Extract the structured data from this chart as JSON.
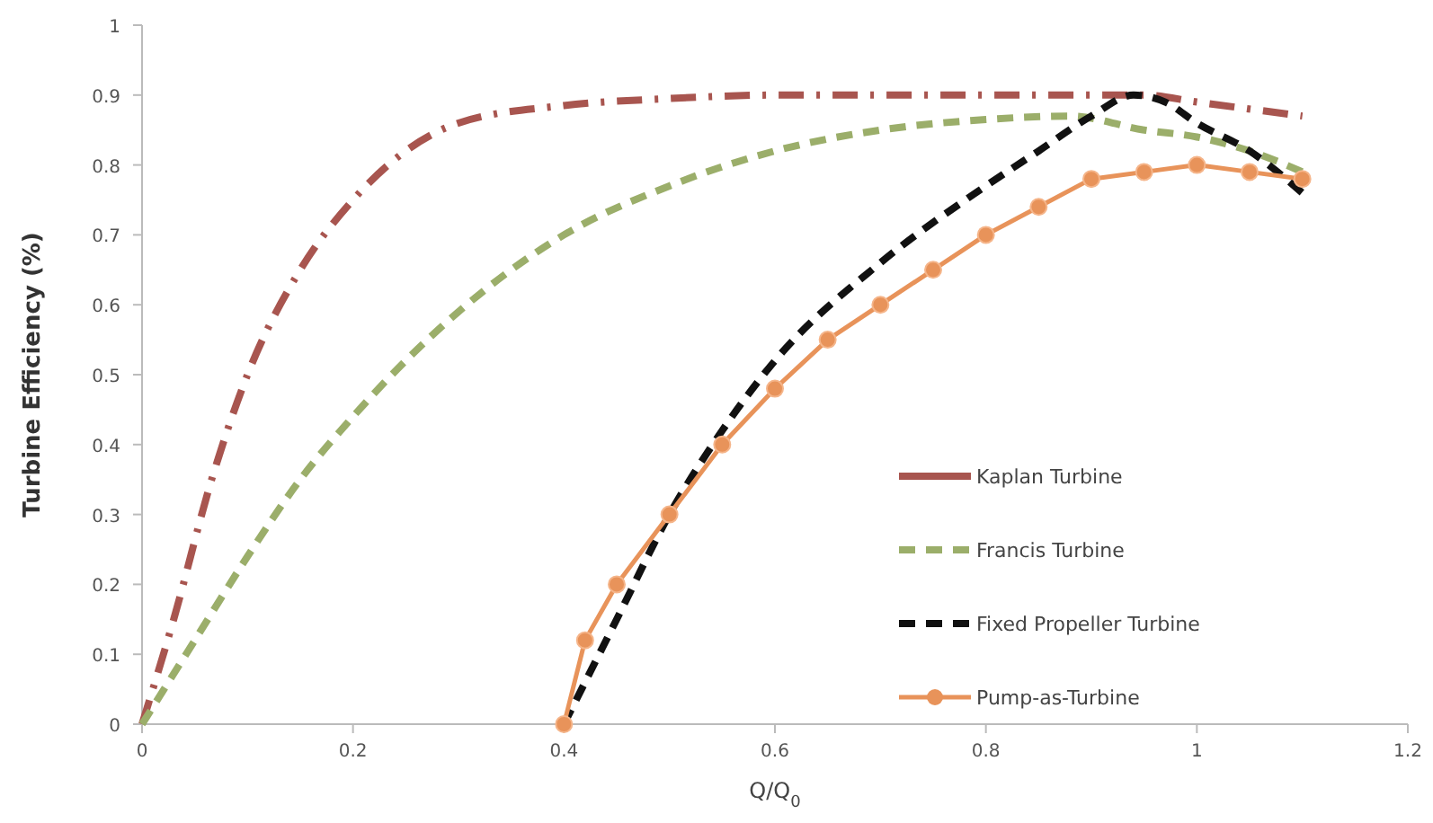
{
  "chart_data": {
    "type": "line",
    "xlabel": "Q/Q$_{0}$",
    "ylabel": "Turbine Efficiency (%)",
    "xlim": [
      0,
      1.2
    ],
    "xticks": [
      0,
      0.2,
      0.4,
      0.6,
      0.8,
      1,
      1.2
    ],
    "ylim": [
      0,
      1
    ],
    "yticks": [
      0,
      0.1,
      0.2,
      0.3,
      0.4,
      0.5,
      0.6,
      0.7,
      0.8,
      0.9,
      1
    ],
    "grid": false,
    "legend": "right",
    "series": [
      {
        "name": "Kaplan Turbine",
        "color": "#a8554f",
        "line_style": "dashdot",
        "marker": "none",
        "x": [
          0,
          0.03,
          0.066,
          0.1,
          0.15,
          0.2,
          0.25,
          0.3,
          0.4,
          0.5,
          0.6,
          0.8,
          0.9,
          0.95,
          1,
          1.1
        ],
        "values": [
          0,
          0.15,
          0.35,
          0.5,
          0.65,
          0.75,
          0.82,
          0.86,
          0.885,
          0.895,
          0.9,
          0.9,
          0.9,
          0.9,
          0.89,
          0.87
        ]
      },
      {
        "name": "Francis Turbine",
        "color": "#9bae6a",
        "line_style": "dashed",
        "marker": "none",
        "x": [
          0,
          0.05,
          0.1,
          0.15,
          0.2,
          0.25,
          0.3,
          0.35,
          0.4,
          0.5,
          0.6,
          0.7,
          0.8,
          0.88,
          0.95,
          1,
          1.05,
          1.1
        ],
        "values": [
          0,
          0.12,
          0.24,
          0.35,
          0.44,
          0.52,
          0.59,
          0.65,
          0.7,
          0.77,
          0.82,
          0.85,
          0.865,
          0.87,
          0.85,
          0.84,
          0.82,
          0.79
        ]
      },
      {
        "name": "Fixed Propeller Turbine",
        "color": "#111111",
        "line_style": "dashed",
        "marker": "none",
        "x": [
          0.4,
          0.45,
          0.5,
          0.55,
          0.6,
          0.7,
          0.8,
          0.85,
          0.9,
          0.94,
          0.97,
          1,
          1.05,
          1.1
        ],
        "values": [
          0,
          0.15,
          0.3,
          0.42,
          0.52,
          0.66,
          0.77,
          0.82,
          0.87,
          0.9,
          0.89,
          0.86,
          0.82,
          0.76
        ]
      },
      {
        "name": "Pump-as-Turbine",
        "color": "#e8935a",
        "line_style": "solid",
        "marker": "circle",
        "x": [
          0.4,
          0.42,
          0.45,
          0.5,
          0.55,
          0.6,
          0.65,
          0.7,
          0.75,
          0.8,
          0.85,
          0.9,
          0.95,
          1,
          1.05,
          1.1
        ],
        "values": [
          0,
          0.12,
          0.2,
          0.3,
          0.4,
          0.48,
          0.55,
          0.6,
          0.65,
          0.7,
          0.74,
          0.78,
          0.79,
          0.8,
          0.79,
          0.78
        ]
      }
    ]
  }
}
